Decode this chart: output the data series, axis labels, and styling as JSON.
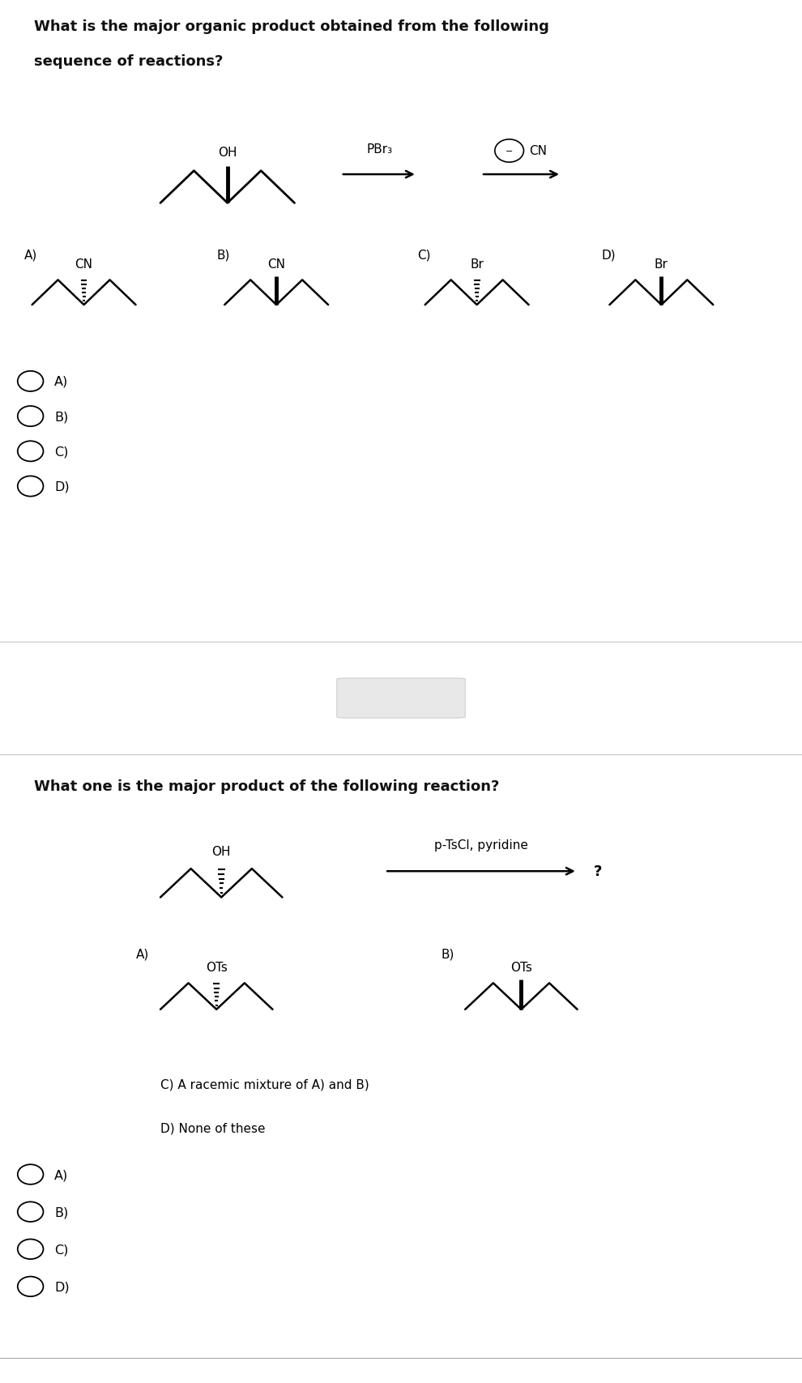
{
  "q1_title_line1": "What is the major organic product obtained from the following",
  "q1_title_line2": "sequence of reactions?",
  "q2_title": "What one is the major product of the following reaction?",
  "q1_reagent1": "PBr₃",
  "q1_reagent2_circle": "⊖",
  "q1_reagent2_text": "CN",
  "q2_reagent": "p-TsCl, pyridine",
  "q2_mark": "?",
  "q1_choice_labels": [
    "A)",
    "B)",
    "C)",
    "D)"
  ],
  "q1_sub_labels": [
    "CN",
    "CN",
    "Br",
    "Br"
  ],
  "q1_sub_styles": [
    "dashed",
    "solid",
    "dashed",
    "solid"
  ],
  "q2_sub_labels": [
    "OTs",
    "OTs"
  ],
  "q2_sub_styles": [
    "dashed",
    "solid"
  ],
  "q2_c_text": "C) A racemic mixture of A) and B)",
  "q2_d_text": "D) None of these",
  "radio_options": [
    "A)",
    "B)",
    "C)",
    "D)"
  ],
  "bg_q1": "#cdd9b8",
  "bg_white": "#ffffff",
  "bg_q2": "#d8d0e8",
  "text_color": "#111111"
}
